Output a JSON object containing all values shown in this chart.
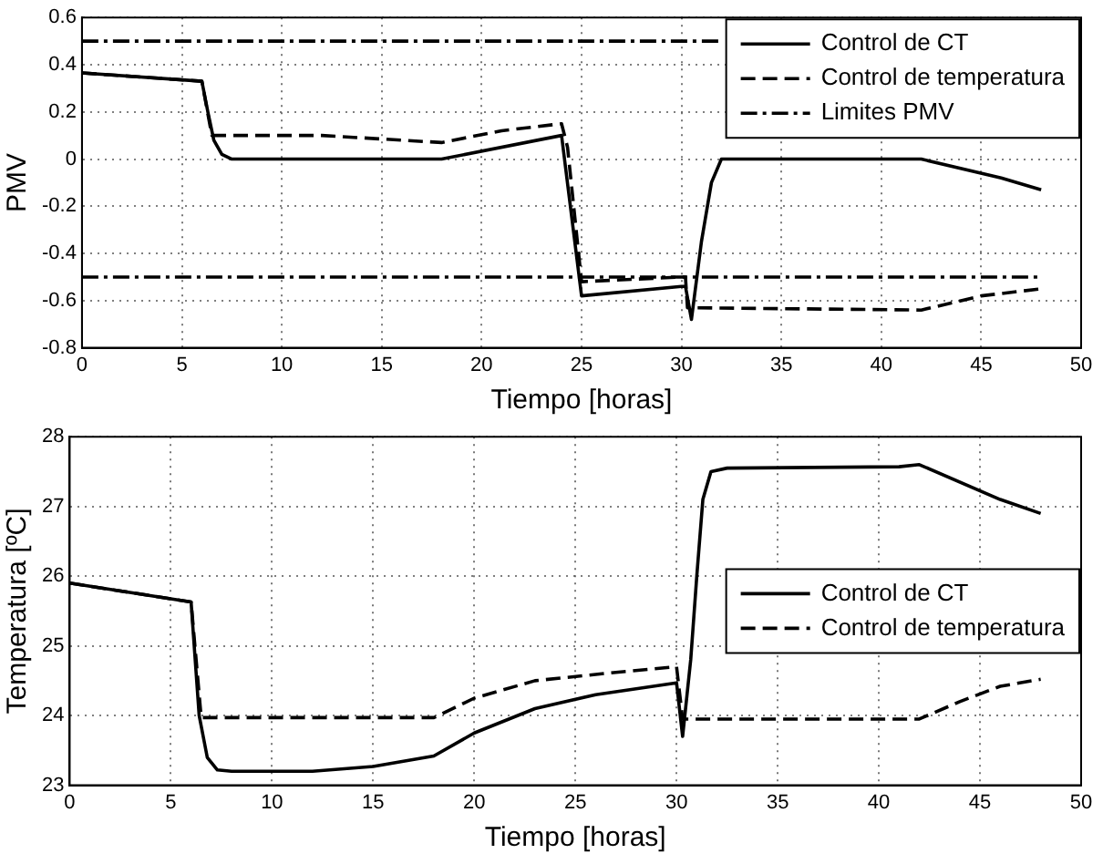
{
  "chart_data": [
    {
      "type": "line",
      "xlabel": "Tiempo [horas]",
      "ylabel": "PMV",
      "xlim": [
        0,
        50
      ],
      "ylim": [
        -0.8,
        0.6
      ],
      "xticks": [
        0,
        5,
        10,
        15,
        20,
        25,
        30,
        35,
        40,
        45,
        50
      ],
      "yticks": [
        -0.8,
        -0.6,
        -0.4,
        -0.2,
        0,
        0.2,
        0.4,
        0.6
      ],
      "grid": true,
      "legend": "top right",
      "series": [
        {
          "name": "Control de CT",
          "color": "#000000",
          "line_style": "solid",
          "x": [
            0,
            6,
            6.3,
            6.6,
            7,
            7.5,
            18,
            24,
            25,
            30,
            30.2,
            30.5,
            31,
            31.5,
            32,
            42,
            46,
            48
          ],
          "values": [
            0.365,
            0.33,
            0.2,
            0.08,
            0.02,
            0,
            0,
            0.1,
            -0.58,
            -0.54,
            -0.54,
            -0.68,
            -0.35,
            -0.1,
            0,
            0,
            -0.08,
            -0.13
          ]
        },
        {
          "name": "Control de temperatura",
          "color": "#000000",
          "line_style": "dashed",
          "x": [
            0,
            6,
            6.5,
            12,
            18,
            21,
            24,
            24.3,
            25,
            30,
            30.2,
            30.3,
            42,
            45,
            48
          ],
          "values": [
            0.365,
            0.33,
            0.1,
            0.1,
            0.07,
            0.12,
            0.15,
            0.05,
            -0.52,
            -0.5,
            -0.5,
            -0.63,
            -0.64,
            -0.58,
            -0.55
          ]
        },
        {
          "name": "Limites PMV",
          "color": "#000000",
          "line_style": "dashdot",
          "x": [
            0,
            32
          ],
          "values": [
            0.5,
            0.5
          ]
        },
        {
          "color": "#000000",
          "line_style": "dashdot",
          "x": [
            0,
            48
          ],
          "values": [
            -0.5,
            -0.5
          ]
        }
      ]
    },
    {
      "type": "line",
      "xlabel": "Tiempo [horas]",
      "ylabel": "Temperatura [ºC]",
      "xlim": [
        0,
        50
      ],
      "ylim": [
        23,
        28
      ],
      "xticks": [
        0,
        5,
        10,
        15,
        20,
        25,
        30,
        35,
        40,
        45,
        50
      ],
      "yticks": [
        23,
        24,
        25,
        26,
        27,
        28
      ],
      "grid": true,
      "legend": "right",
      "series": [
        {
          "name": "Control de CT",
          "color": "#000000",
          "line_style": "solid",
          "x": [
            0,
            6,
            6.4,
            6.8,
            7.3,
            8,
            12,
            15,
            18,
            20,
            23,
            26,
            30,
            30.3,
            30.7,
            31,
            31.3,
            31.7,
            32.5,
            41,
            42,
            46,
            48
          ],
          "values": [
            25.9,
            25.63,
            24,
            23.4,
            23.22,
            23.2,
            23.2,
            23.27,
            23.42,
            23.75,
            24.1,
            24.3,
            24.47,
            23.7,
            24.8,
            26,
            27.1,
            27.5,
            27.55,
            27.57,
            27.6,
            27.1,
            26.9
          ]
        },
        {
          "name": "Control de temperatura",
          "color": "#000000",
          "line_style": "dashed",
          "x": [
            0,
            6,
            6.5,
            18,
            20,
            23,
            27,
            30,
            30.3,
            42,
            44,
            46,
            48
          ],
          "values": [
            25.9,
            25.63,
            23.97,
            23.97,
            24.25,
            24.5,
            24.62,
            24.7,
            23.95,
            23.95,
            24.2,
            24.42,
            24.52
          ]
        }
      ]
    }
  ]
}
